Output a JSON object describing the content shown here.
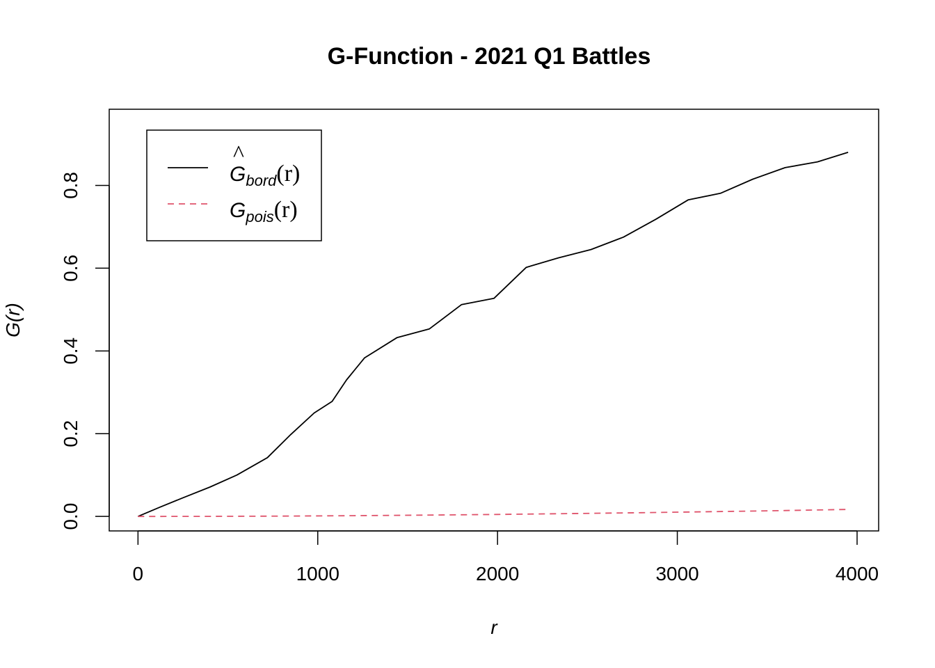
{
  "chart_data": {
    "type": "line",
    "title": "G-Function - 2021 Q1 Battles",
    "xlabel": "r",
    "ylabel": "G(r)",
    "xlim": [
      -160,
      4000
    ],
    "ylim": [
      -0.035,
      0.9
    ],
    "x_ticks": [
      0,
      1000,
      2000,
      3000,
      4000
    ],
    "x_tick_labels": [
      "0",
      "1000",
      "2000",
      "3000",
      "4000"
    ],
    "y_ticks": [
      0.0,
      0.2,
      0.4,
      0.6,
      0.8
    ],
    "y_tick_labels": [
      "0.0",
      "0.2",
      "0.4",
      "0.6",
      "0.8"
    ],
    "grid": false,
    "legend_position": "top-left",
    "series": [
      {
        "name": "Ĝbord(r)",
        "legend": {
          "main": "G",
          "hat": "^",
          "sub": "bord",
          "arg": "(r)"
        },
        "color": "#000000",
        "dash": "solid",
        "x": [
          0,
          120,
          250,
          400,
          550,
          720,
          850,
          980,
          1080,
          1160,
          1260,
          1440,
          1620,
          1800,
          1980,
          2160,
          2340,
          2520,
          2700,
          2880,
          3060,
          3240,
          3420,
          3600,
          3780,
          3950
        ],
        "y": [
          0.0,
          0.022,
          0.045,
          0.071,
          0.1,
          0.142,
          0.198,
          0.25,
          0.278,
          0.33,
          0.383,
          0.432,
          0.453,
          0.512,
          0.527,
          0.602,
          0.625,
          0.645,
          0.675,
          0.718,
          0.765,
          0.781,
          0.815,
          0.843,
          0.857,
          0.88
        ]
      },
      {
        "name": "Gpois(r)",
        "legend": {
          "main": "G",
          "hat": "",
          "sub": "pois",
          "arg": "(r)"
        },
        "color": "#DF536B",
        "dash": "dashed",
        "x": [
          0,
          400,
          800,
          1200,
          1600,
          2000,
          2400,
          2800,
          3200,
          3600,
          3950
        ],
        "y": [
          0.0,
          0.0002,
          0.0009,
          0.0019,
          0.0032,
          0.0049,
          0.0068,
          0.009,
          0.0115,
          0.0142,
          0.0169
        ]
      }
    ]
  }
}
